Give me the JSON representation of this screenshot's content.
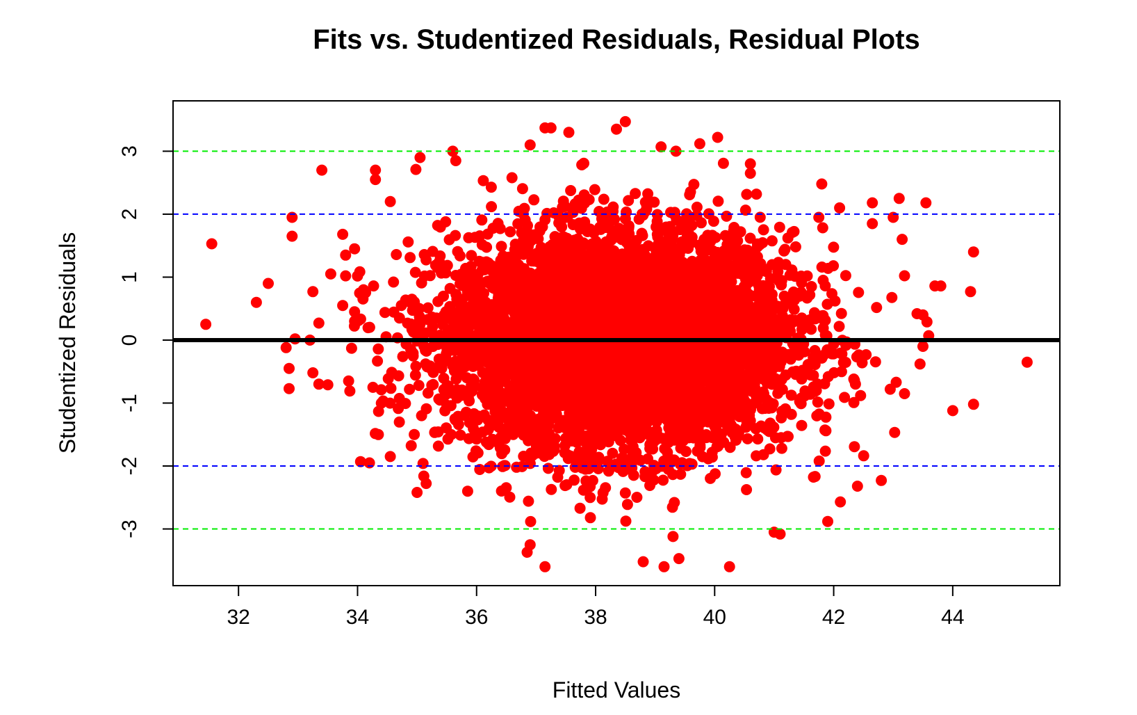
{
  "chart_data": {
    "type": "scatter",
    "title": "Fits vs. Studentized Residuals, Residual Plots",
    "xlabel": "Fitted Values",
    "ylabel": "Studentized Residuals",
    "xlim": [
      30.9,
      45.8
    ],
    "ylim": [
      -3.9,
      3.8
    ],
    "xticks": [
      32,
      34,
      36,
      38,
      40,
      42,
      44
    ],
    "yticks": [
      -3,
      -2,
      -1,
      0,
      1,
      2,
      3
    ],
    "grid": false,
    "legend": "none",
    "point_color": "#ff0000",
    "reference_lines": [
      {
        "y": 0,
        "color": "#000000",
        "style": "solid"
      },
      {
        "y": 2,
        "color": "#0000ff",
        "style": "dashed"
      },
      {
        "y": -2,
        "color": "#0000ff",
        "style": "dashed"
      },
      {
        "y": 3,
        "color": "#00ee00",
        "style": "dashed"
      },
      {
        "y": -3,
        "color": "#00ee00",
        "style": "dashed"
      }
    ],
    "cloud": {
      "center_x": 38.4,
      "center_y": 0,
      "sd_x": 1.45,
      "sd_y": 0.85,
      "n": 6000
    },
    "points": [
      [
        31.45,
        0.25
      ],
      [
        31.55,
        1.53
      ],
      [
        32.3,
        0.6
      ],
      [
        32.5,
        0.9
      ],
      [
        32.8,
        -0.12
      ],
      [
        32.85,
        -0.45
      ],
      [
        32.85,
        -0.77
      ],
      [
        32.9,
        1.95
      ],
      [
        32.9,
        1.65
      ],
      [
        32.95,
        0.02
      ],
      [
        33.2,
        0.0
      ],
      [
        33.25,
        -0.52
      ],
      [
        33.25,
        0.77
      ],
      [
        33.35,
        0.27
      ],
      [
        33.4,
        2.7
      ],
      [
        33.35,
        -0.7
      ],
      [
        33.5,
        -0.71
      ],
      [
        33.55,
        1.05
      ],
      [
        33.75,
        1.68
      ],
      [
        33.8,
        1.35
      ],
      [
        33.75,
        0.55
      ],
      [
        33.8,
        1.02
      ],
      [
        33.85,
        -0.65
      ],
      [
        33.95,
        1.45
      ],
      [
        33.95,
        0.45
      ],
      [
        33.9,
        -0.13
      ],
      [
        33.95,
        0.3
      ],
      [
        34.05,
        -1.93
      ],
      [
        34.1,
        0.8
      ],
      [
        34.2,
        -1.95
      ],
      [
        34.3,
        2.7
      ],
      [
        34.3,
        2.55
      ],
      [
        34.35,
        -1.5
      ],
      [
        34.55,
        -1.85
      ],
      [
        34.55,
        2.2
      ],
      [
        35.05,
        2.9
      ],
      [
        35.0,
        -2.42
      ],
      [
        35.1,
        -1.96
      ],
      [
        35.6,
        3.0
      ],
      [
        35.65,
        2.85
      ],
      [
        35.85,
        -2.4
      ],
      [
        36.9,
        3.1
      ],
      [
        37.15,
        3.37
      ],
      [
        37.25,
        3.37
      ],
      [
        37.55,
        3.3
      ],
      [
        38.35,
        3.35
      ],
      [
        38.5,
        3.47
      ],
      [
        39.1,
        3.07
      ],
      [
        39.35,
        3.0
      ],
      [
        39.75,
        3.12
      ],
      [
        40.05,
        3.22
      ],
      [
        40.6,
        2.8
      ],
      [
        40.6,
        2.65
      ],
      [
        36.85,
        -3.37
      ],
      [
        36.9,
        -3.25
      ],
      [
        37.15,
        -3.6
      ],
      [
        38.8,
        -3.52
      ],
      [
        39.15,
        -3.6
      ],
      [
        39.4,
        -3.47
      ],
      [
        39.3,
        -3.12
      ],
      [
        40.25,
        -3.6
      ],
      [
        41.0,
        -3.05
      ],
      [
        41.1,
        -3.08
      ],
      [
        41.9,
        -2.88
      ],
      [
        42.4,
        -2.32
      ],
      [
        42.8,
        -2.23
      ],
      [
        42.65,
        2.18
      ],
      [
        42.65,
        1.85
      ],
      [
        43.0,
        1.95
      ],
      [
        43.1,
        2.25
      ],
      [
        43.15,
        1.6
      ],
      [
        43.55,
        2.18
      ],
      [
        43.4,
        0.42
      ],
      [
        43.5,
        0.4
      ],
      [
        43.45,
        -0.38
      ],
      [
        43.5,
        -0.1
      ],
      [
        43.7,
        0.86
      ],
      [
        43.8,
        0.86
      ],
      [
        44.3,
        0.77
      ],
      [
        44.35,
        1.4
      ],
      [
        44.0,
        -1.12
      ],
      [
        44.35,
        -1.02
      ],
      [
        45.25,
        -0.35
      ],
      [
        43.05,
        -0.67
      ],
      [
        42.95,
        -0.78
      ],
      [
        41.8,
        2.48
      ],
      [
        42.1,
        2.1
      ],
      [
        41.75,
        1.95
      ]
    ]
  }
}
